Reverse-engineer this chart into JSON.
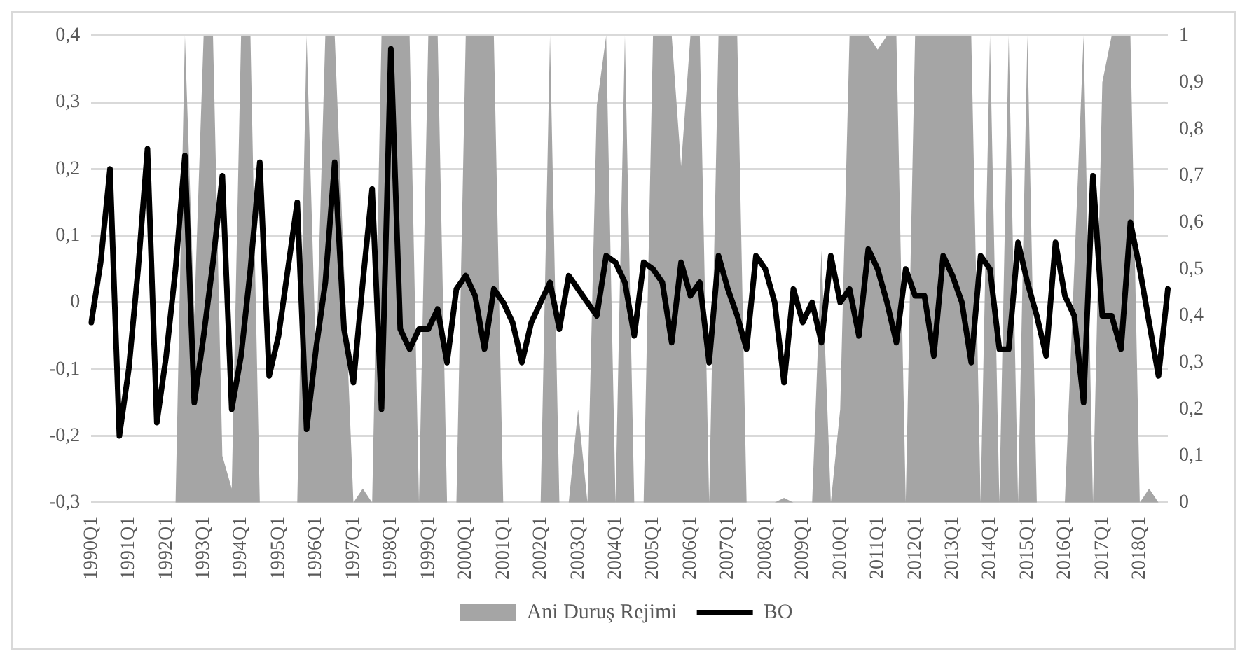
{
  "chart_data": {
    "type": "line",
    "categories": [
      "1990Q1",
      null,
      null,
      null,
      "1991Q1",
      null,
      null,
      null,
      "1992Q1",
      null,
      null,
      null,
      "1993Q1",
      null,
      null,
      null,
      "1994Q1",
      null,
      null,
      null,
      "1995Q1",
      null,
      null,
      null,
      "1996Q1",
      null,
      null,
      null,
      "1997Q1",
      null,
      null,
      null,
      "1998Q1",
      null,
      null,
      null,
      "1999Q1",
      null,
      null,
      null,
      "2000Q1",
      null,
      null,
      null,
      "2001Q1",
      null,
      null,
      null,
      "2002Q1",
      null,
      null,
      null,
      "2003Q1",
      null,
      null,
      null,
      "2004Q1",
      null,
      null,
      null,
      "2005Q1",
      null,
      null,
      null,
      "2006Q1",
      null,
      null,
      null,
      "2007Q1",
      null,
      null,
      null,
      "2008Q1",
      null,
      null,
      null,
      "2009Q1",
      null,
      null,
      null,
      "2010Q1",
      null,
      null,
      null,
      "2011Q1",
      null,
      null,
      null,
      "2012Q1",
      null,
      null,
      null,
      "2013Q1",
      null,
      null,
      null,
      "2014Q1",
      null,
      null,
      null,
      "2015Q1",
      null,
      null,
      null,
      "2016Q1",
      null,
      null,
      null,
      "2017Q1",
      null,
      null,
      null,
      "2018Q1",
      null,
      null,
      null
    ],
    "series": [
      {
        "name": "Ani Duruş Rejimi",
        "type": "area",
        "axis": "y2",
        "color": "#a5a5a5",
        "values": [
          0,
          0,
          0,
          0,
          0,
          0,
          0,
          0,
          0,
          0,
          1,
          0.4,
          1,
          1,
          0.1,
          0.03,
          1,
          1,
          0,
          0,
          0,
          0,
          0,
          1,
          0.3,
          1,
          1,
          0.5,
          0,
          0.03,
          0,
          1,
          1,
          1,
          1,
          0,
          1,
          1,
          0,
          0,
          1,
          1,
          1,
          1,
          0,
          0,
          0,
          0,
          0,
          1,
          0,
          0,
          0.2,
          0,
          0.85,
          1,
          0,
          1,
          0,
          0,
          1,
          1,
          1,
          0.72,
          1,
          1,
          0,
          1,
          1,
          1,
          0,
          0,
          0,
          0,
          0.01,
          0,
          0,
          0,
          0.54,
          0,
          0.2,
          1,
          1,
          1,
          0.97,
          1,
          1,
          0,
          1,
          1,
          1,
          1,
          1,
          1,
          1,
          0,
          1,
          0,
          1,
          0,
          1,
          0,
          0,
          0,
          0,
          0.5,
          1,
          0,
          0.9,
          1,
          1,
          1,
          0,
          0.03,
          0,
          0
        ]
      },
      {
        "name": "BO",
        "type": "line",
        "color": "#000000",
        "values": [
          -0.03,
          0.06,
          0.2,
          -0.2,
          -0.1,
          0.05,
          0.23,
          -0.18,
          -0.08,
          0.05,
          0.22,
          -0.15,
          -0.05,
          0.06,
          0.19,
          -0.16,
          -0.08,
          0.05,
          0.21,
          -0.11,
          -0.05,
          0.05,
          0.15,
          -0.19,
          -0.07,
          0.03,
          0.21,
          -0.04,
          -0.12,
          0.03,
          0.17,
          -0.16,
          0.38,
          -0.04,
          -0.07,
          -0.04,
          -0.04,
          -0.01,
          -0.09,
          0.02,
          0.04,
          0.01,
          -0.07,
          0.02,
          0,
          -0.03,
          -0.09,
          -0.03,
          0,
          0.03,
          -0.04,
          0.04,
          0.02,
          0,
          -0.02,
          0.07,
          0.06,
          0.03,
          -0.05,
          0.06,
          0.05,
          0.03,
          -0.06,
          0.06,
          0.01,
          0.03,
          -0.09,
          0.07,
          0.02,
          -0.02,
          -0.07,
          0.07,
          0.05,
          0,
          -0.12,
          0.02,
          -0.03,
          0,
          -0.06,
          0.07,
          0,
          0.02,
          -0.05,
          0.08,
          0.05,
          0,
          -0.06,
          0.05,
          0.01,
          0.01,
          -0.08,
          0.07,
          0.04,
          0,
          -0.09,
          0.07,
          0.05,
          -0.07,
          -0.07,
          0.09,
          0.03,
          -0.02,
          -0.08,
          0.09,
          0.01,
          -0.02,
          -0.15,
          0.19,
          -0.02,
          -0.02,
          -0.07,
          0.12,
          0.05,
          -0.03,
          -0.11,
          0.02
        ]
      }
    ],
    "ylim": [
      -0.3,
      0.4
    ],
    "yticks": [
      {
        "value": -0.3,
        "label": "-0,3"
      },
      {
        "value": -0.2,
        "label": "-0,2"
      },
      {
        "value": -0.1,
        "label": "-0,1"
      },
      0,
      {
        "value": 0.1,
        "label": "0,1"
      },
      {
        "value": 0.2,
        "label": "0,2"
      },
      {
        "value": 0.3,
        "label": "0,3"
      },
      {
        "value": 0.4,
        "label": "0,4"
      }
    ],
    "y2lim": [
      0,
      1
    ],
    "y2ticks": [
      0,
      {
        "value": 0.1,
        "label": "0,1"
      },
      {
        "value": 0.2,
        "label": "0,2"
      },
      {
        "value": 0.3,
        "label": "0,3"
      },
      {
        "value": 0.4,
        "label": "0,4"
      },
      {
        "value": 0.5,
        "label": "0,5"
      },
      {
        "value": 0.6,
        "label": "0,6"
      },
      {
        "value": 0.7,
        "label": "0,7"
      },
      {
        "value": 0.8,
        "label": "0,8"
      },
      {
        "value": 0.9,
        "label": "0,9"
      },
      1
    ],
    "grid": "y",
    "legend": "bottom",
    "marker": "none"
  }
}
